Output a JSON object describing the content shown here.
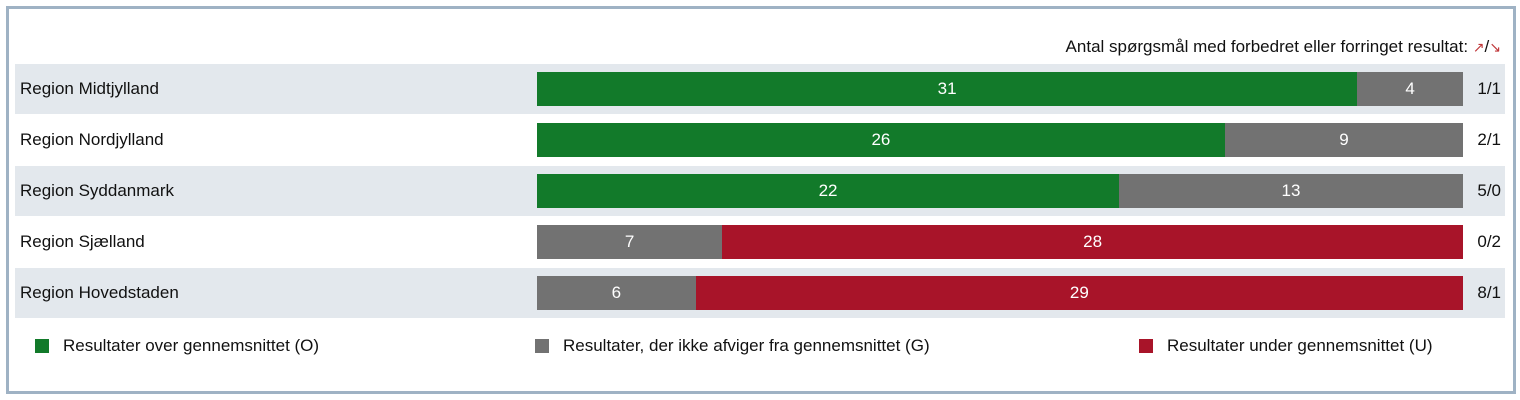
{
  "header": {
    "text": "Antal spørgsmål med forbedret eller forringet resultat:",
    "up_symbol": "↗",
    "separator": "/",
    "down_symbol": "↘"
  },
  "colors": {
    "O": "#127a2a",
    "G": "#727272",
    "U": "#a81429"
  },
  "chart_data": {
    "type": "bar",
    "orientation": "horizontal",
    "stacked": true,
    "categories": [
      "Region Midtjylland",
      "Region Nordjylland",
      "Region Syddanmark",
      "Region Sjælland",
      "Region Hovedstaden"
    ],
    "series": [
      {
        "name": "Resultater over gennemsnittet (O)",
        "key": "O",
        "values": [
          31,
          26,
          22,
          0,
          0
        ]
      },
      {
        "name": "Resultater, der ikke afviger fra gennemsnittet (G)",
        "key": "G",
        "values": [
          4,
          9,
          13,
          7,
          6
        ]
      },
      {
        "name": "Resultater under gennemsnittet (U)",
        "key": "U",
        "values": [
          0,
          0,
          0,
          28,
          29
        ]
      }
    ],
    "changes": [
      "1/1",
      "2/1",
      "5/0",
      "0/2",
      "8/1"
    ],
    "xlim": [
      0,
      35
    ],
    "legend_position": "bottom"
  }
}
